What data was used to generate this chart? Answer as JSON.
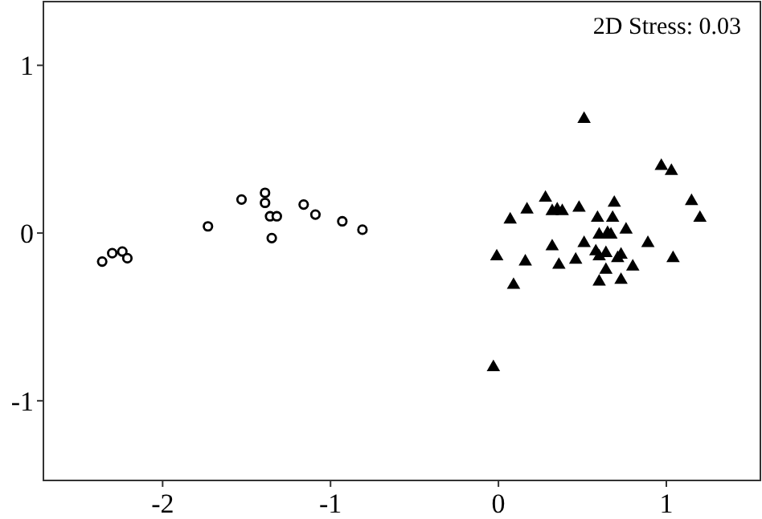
{
  "chart_data": {
    "type": "scatter",
    "annotations": [
      "2D Stress: 0.03"
    ],
    "xlim": [
      -2.71,
      1.56
    ],
    "ylim": [
      -1.475,
      1.38
    ],
    "xticks": [
      -2,
      -1,
      0,
      1
    ],
    "yticks": [
      -1,
      0,
      1
    ],
    "series": [
      {
        "color": "#000000",
        "marker": "circle",
        "x": [
          -2.36,
          -2.3,
          -2.24,
          -2.21,
          -1.73,
          -1.53,
          -1.39,
          -1.39,
          -1.36,
          -1.32,
          -1.35,
          -1.16,
          -1.09,
          -0.93,
          -0.81
        ],
        "values": [
          -0.17,
          -0.12,
          -0.11,
          -0.15,
          0.04,
          0.2,
          0.24,
          0.18,
          0.1,
          0.1,
          -0.03,
          0.17,
          0.11,
          0.07,
          0.02
        ]
      },
      {
        "color": "#000000",
        "marker": "triangle",
        "x": [
          0.51,
          0.97,
          1.03,
          1.15,
          1.2,
          0.28,
          0.17,
          0.07,
          0.32,
          0.35,
          0.38,
          0.48,
          0.69,
          0.59,
          0.68,
          0.76,
          0.6,
          0.65,
          0.67,
          0.51,
          0.32,
          -0.01,
          0.89,
          1.04,
          0.58,
          0.6,
          0.64,
          0.71,
          0.73,
          0.16,
          0.36,
          0.46,
          0.8,
          0.64,
          0.09,
          0.6,
          0.73,
          -0.03
        ],
        "values": [
          0.68,
          0.4,
          0.37,
          0.19,
          0.09,
          0.21,
          0.14,
          0.08,
          0.13,
          0.14,
          0.13,
          0.15,
          0.18,
          0.09,
          0.09,
          0.02,
          -0.01,
          0,
          -0.01,
          -0.06,
          -0.08,
          -0.14,
          -0.06,
          -0.15,
          -0.11,
          -0.14,
          -0.12,
          -0.15,
          -0.13,
          -0.17,
          -0.19,
          -0.16,
          -0.2,
          -0.22,
          -0.31,
          -0.29,
          -0.28,
          -0.8
        ]
      }
    ]
  }
}
